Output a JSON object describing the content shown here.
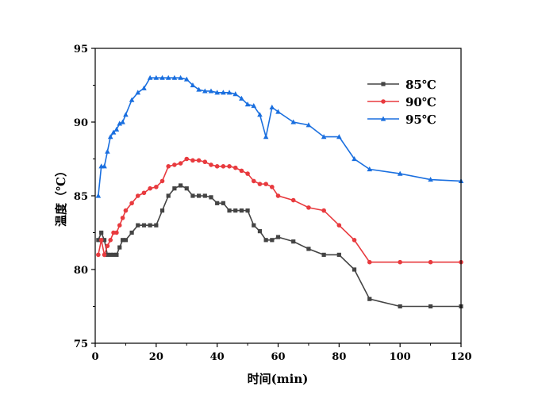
{
  "chart_data": {
    "type": "line",
    "title": "",
    "xlabel": "时间(min)",
    "ylabel": "温度（℃）",
    "xlim": [
      0,
      120
    ],
    "ylim": [
      75,
      95
    ],
    "xticks": [
      0,
      20,
      40,
      60,
      80,
      100,
      120
    ],
    "yticks": [
      75,
      80,
      85,
      90,
      95
    ],
    "grid": false,
    "legend_position": "top-right",
    "x": [
      1,
      2,
      3,
      4,
      5,
      6,
      7,
      8,
      9,
      10,
      12,
      14,
      16,
      18,
      20,
      22,
      24,
      26,
      28,
      30,
      32,
      34,
      36,
      38,
      40,
      42,
      44,
      46,
      48,
      50,
      52,
      54,
      56,
      58,
      60,
      65,
      70,
      75,
      80,
      85,
      90,
      100,
      110,
      120
    ],
    "series": [
      {
        "name": "85℃",
        "color": "#444444",
        "marker": "square",
        "values": [
          82,
          82.5,
          82,
          81,
          81,
          81,
          81,
          81.5,
          82,
          82,
          82.5,
          83,
          83,
          83,
          83,
          84,
          85,
          85.5,
          85.7,
          85.5,
          85,
          85,
          85,
          84.9,
          84.5,
          84.5,
          84,
          84,
          84,
          84,
          83,
          82.6,
          82,
          82,
          82.2,
          81.9,
          81.4,
          81,
          81,
          80,
          78,
          77.5,
          77.5,
          77.5
        ]
      },
      {
        "name": "90℃",
        "color": "#e83a3e",
        "marker": "circle",
        "values": [
          81,
          82,
          81,
          81.6,
          82,
          82.5,
          82.5,
          83,
          83.5,
          84,
          84.5,
          85,
          85.2,
          85.5,
          85.6,
          86,
          87,
          87.1,
          87.2,
          87.5,
          87.4,
          87.4,
          87.3,
          87.1,
          87,
          87,
          87,
          86.9,
          86.7,
          86.5,
          86,
          85.8,
          85.8,
          85.6,
          85,
          84.7,
          84.2,
          84,
          83,
          82,
          80.5,
          80.5,
          80.5,
          80.5
        ]
      },
      {
        "name": "95℃",
        "color": "#1a6fdf",
        "marker": "triangle",
        "values": [
          85,
          87,
          87,
          88,
          89,
          89.3,
          89.5,
          89.9,
          90,
          90.5,
          91.5,
          92,
          92.3,
          93,
          93,
          93,
          93,
          93,
          93,
          92.9,
          92.5,
          92.2,
          92.1,
          92.1,
          92,
          92,
          92,
          91.9,
          91.6,
          91.2,
          91.1,
          90.5,
          89,
          91,
          90.7,
          90,
          89.8,
          89,
          89,
          87.5,
          86.8,
          86.5,
          86.1,
          86
        ]
      }
    ]
  }
}
